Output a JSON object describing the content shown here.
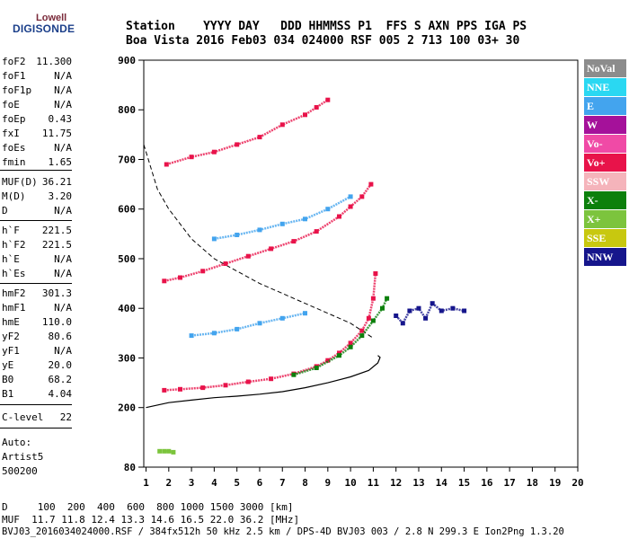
{
  "logo": {
    "line1": "Lowell",
    "line2": "DIGISONDE"
  },
  "header": {
    "row1": "Station    YYYY DAY   DDD HHMMSS P1  FFS S AXN PPS IGA PS",
    "row2": "Boa Vista 2016 Feb03 034 024000 RSF 005 2 713 100 03+ 30"
  },
  "params": [
    {
      "k": "foF2",
      "v": "11.300"
    },
    {
      "k": "foF1",
      "v": "N/A"
    },
    {
      "k": "foF1p",
      "v": "N/A"
    },
    {
      "k": "foE",
      "v": "N/A"
    },
    {
      "k": "foEp",
      "v": "0.43"
    },
    {
      "k": "fxI",
      "v": "11.75"
    },
    {
      "k": "foEs",
      "v": "N/A"
    },
    {
      "k": "fmin",
      "v": "1.65"
    },
    {
      "k": "MUF(D)",
      "v": "36.21"
    },
    {
      "k": "M(D)",
      "v": "3.20"
    },
    {
      "k": "D",
      "v": "N/A"
    },
    {
      "k": "h`F",
      "v": "221.5"
    },
    {
      "k": "h`F2",
      "v": "221.5"
    },
    {
      "k": "h`E",
      "v": "N/A"
    },
    {
      "k": "h`Es",
      "v": "N/A"
    },
    {
      "k": "hmF2",
      "v": "301.3"
    },
    {
      "k": "hmF1",
      "v": "N/A"
    },
    {
      "k": "hmE",
      "v": "110.0"
    },
    {
      "k": "yF2",
      "v": "80.6"
    },
    {
      "k": "yF1",
      "v": "N/A"
    },
    {
      "k": "yE",
      "v": "20.0"
    },
    {
      "k": "B0",
      "v": "68.2"
    },
    {
      "k": "B1",
      "v": "4.04"
    },
    {
      "k": "C-level",
      "v": "22"
    }
  ],
  "auto": {
    "line1": "Auto:",
    "line2": "Artist5",
    "line3": "500200"
  },
  "legend": [
    {
      "label": "NoVal",
      "color": "#8c8c8c"
    },
    {
      "label": "NNE",
      "color": "#2ad8f2"
    },
    {
      "label": "E",
      "color": "#43a4ee"
    },
    {
      "label": "W",
      "color": "#a5119a"
    },
    {
      "label": "Vo-",
      "color": "#f04aa6"
    },
    {
      "label": "Vo+",
      "color": "#e8134a"
    },
    {
      "label": "SSW",
      "color": "#f5b4bb"
    },
    {
      "label": "X-",
      "color": "#0c800c"
    },
    {
      "label": "X+",
      "color": "#7cc43d"
    },
    {
      "label": "SSE",
      "color": "#c8c80f"
    },
    {
      "label": "NNW",
      "color": "#16168c"
    }
  ],
  "footer": {
    "row1": "D     100  200  400  600  800 1000 1500 3000 [km]",
    "row2": "MUF  11.7 11.8 12.4 13.3 14.6 16.5 22.0 36.2 [MHz]",
    "row3": "BVJ03_2016034024000.RSF / 384fx512h 50 kHz 2.5 km / DPS-4D BVJ03 003 / 2.8 N 299.3 E Ion2Png 1.3.20"
  },
  "chart_data": {
    "type": "scatter",
    "xlabel": "",
    "ylabel": "",
    "xlim": [
      0.9,
      20
    ],
    "ylim": [
      80,
      900
    ],
    "xticks": [
      1,
      2,
      3,
      4,
      5,
      6,
      7,
      8,
      9,
      10,
      11,
      12,
      13,
      14,
      15,
      16,
      17,
      18,
      19,
      20
    ],
    "yticks": [
      80,
      200,
      300,
      400,
      500,
      600,
      700,
      800,
      900
    ],
    "traces": [
      {
        "name": "O-trace F2 (1st hop)",
        "color": "#e8134a",
        "x": [
          1.8,
          2.5,
          3.5,
          4.5,
          5.5,
          6.5,
          7.5,
          8.5,
          9.0,
          9.5,
          10.0,
          10.5,
          10.8,
          11.0,
          11.1
        ],
        "y": [
          235,
          237,
          240,
          245,
          252,
          258,
          268,
          283,
          295,
          310,
          330,
          355,
          380,
          420,
          470
        ]
      },
      {
        "name": "X-trace F2",
        "color": "#0c800c",
        "x": [
          7.5,
          8.5,
          9.5,
          10.0,
          10.5,
          11.0,
          11.4,
          11.6
        ],
        "y": [
          266,
          280,
          305,
          322,
          345,
          375,
          400,
          420
        ]
      },
      {
        "name": "O-trace F2 (2nd hop)",
        "color": "#e8134a",
        "x": [
          1.8,
          2.5,
          3.5,
          4.5,
          5.5,
          6.5,
          7.5,
          8.5,
          9.5,
          10.0,
          10.5,
          10.9
        ],
        "y": [
          455,
          462,
          475,
          490,
          505,
          520,
          535,
          555,
          585,
          605,
          625,
          650
        ]
      },
      {
        "name": "O-trace F2 (3rd hop)",
        "color": "#e8134a",
        "x": [
          1.9,
          3.0,
          4.0,
          5.0,
          6.0,
          7.0,
          8.0,
          8.5,
          9.0
        ],
        "y": [
          690,
          705,
          715,
          730,
          745,
          770,
          790,
          805,
          820
        ]
      },
      {
        "name": "Spread echoes E",
        "color": "#43a4ee",
        "x": [
          3.0,
          4.0,
          5.0,
          6.0,
          7.0,
          8.0
        ],
        "y": [
          345,
          350,
          358,
          370,
          380,
          390
        ]
      },
      {
        "name": "Spread echoes E (2nd hop)",
        "color": "#43a4ee",
        "x": [
          4.0,
          5.0,
          6.0,
          7.0,
          8.0,
          9.0,
          10.0
        ],
        "y": [
          540,
          548,
          558,
          570,
          580,
          600,
          625
        ]
      },
      {
        "name": "NNW echoes",
        "color": "#16168c",
        "x": [
          12.0,
          12.3,
          12.6,
          13.0,
          13.3,
          13.6,
          14.0,
          14.5,
          15.0
        ],
        "y": [
          385,
          370,
          395,
          400,
          380,
          410,
          395,
          400,
          395
        ]
      },
      {
        "name": "Es echoes",
        "color": "#7cc43d",
        "x": [
          1.6,
          1.8,
          2.0,
          2.2
        ],
        "y": [
          112,
          112,
          112,
          110
        ]
      }
    ],
    "profile": {
      "name": "Electron density profile",
      "color": "#000000",
      "x": [
        1.0,
        2.0,
        3.0,
        4.0,
        5.0,
        6.0,
        7.0,
        8.0,
        9.0,
        10.0,
        10.8,
        11.2,
        11.3,
        11.2
      ],
      "y": [
        200,
        210,
        215,
        220,
        223,
        227,
        232,
        240,
        250,
        262,
        275,
        290,
        301,
        305
      ]
    },
    "muf_curve": {
      "name": "MUF curve",
      "color": "#000000",
      "x": [
        0.9,
        1.5,
        2.0,
        3.0,
        4.0,
        5.0,
        6.0,
        7.0,
        8.0,
        9.0,
        10.0,
        11.0
      ],
      "y": [
        730,
        640,
        600,
        540,
        500,
        475,
        450,
        430,
        410,
        390,
        370,
        340
      ]
    }
  }
}
